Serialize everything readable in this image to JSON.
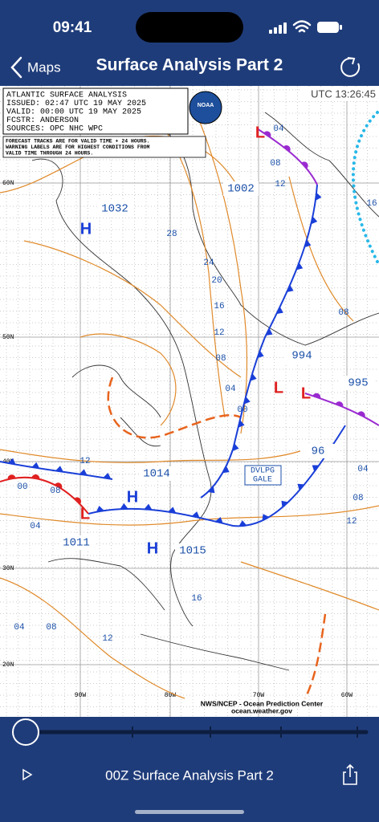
{
  "status_bar": {
    "time": "09:41"
  },
  "nav": {
    "back": "Maps",
    "title": "Surface Analysis Part 2"
  },
  "map": {
    "header": [
      "ATLANTIC SURFACE ANALYSIS",
      "ISSUED: 02:47 UTC 19 MAY 2025",
      "VALID:  00:00 UTC 19 MAY 2025",
      "FCSTR:  ANDERSON",
      "SOURCES: OPC NHC WPC"
    ],
    "note": [
      "FORECAST TRACKS ARE FOR VALID TIME + 24 HOURS.",
      "WARNING LABELS ARE FOR HIGHEST CONDITIONS FROM",
      "VALID TIME THROUGH 24 HOURS."
    ],
    "logo": "NOAA",
    "utc": "UTC 13:26:45",
    "lat_labels": [
      "60N",
      "50N",
      "40N",
      "30N",
      "20N"
    ],
    "lon_labels": [
      "90W",
      "80W",
      "70W",
      "60W"
    ],
    "centers": [
      "H",
      "H",
      "H",
      "L",
      "L",
      "L",
      "L"
    ],
    "pressure_boxes": [
      "1032",
      "1002",
      "994",
      "995",
      "96",
      "1014",
      "1011",
      "1015"
    ],
    "isobar_labels": [
      "04",
      "08",
      "12",
      "28",
      "24",
      "20",
      "16",
      "12",
      "08",
      "04",
      "00",
      "12",
      "00",
      "08",
      "04",
      "04",
      "08",
      "12",
      "16",
      "04",
      "08",
      "12",
      "16",
      "08"
    ],
    "warning": [
      "DVLPG",
      "GALE"
    ],
    "credit": [
      "NWS/NCEP - Ocean Prediction Center",
      "ocean.weather.gov"
    ]
  },
  "player": {
    "title": "00Z Surface Analysis Part 2"
  }
}
